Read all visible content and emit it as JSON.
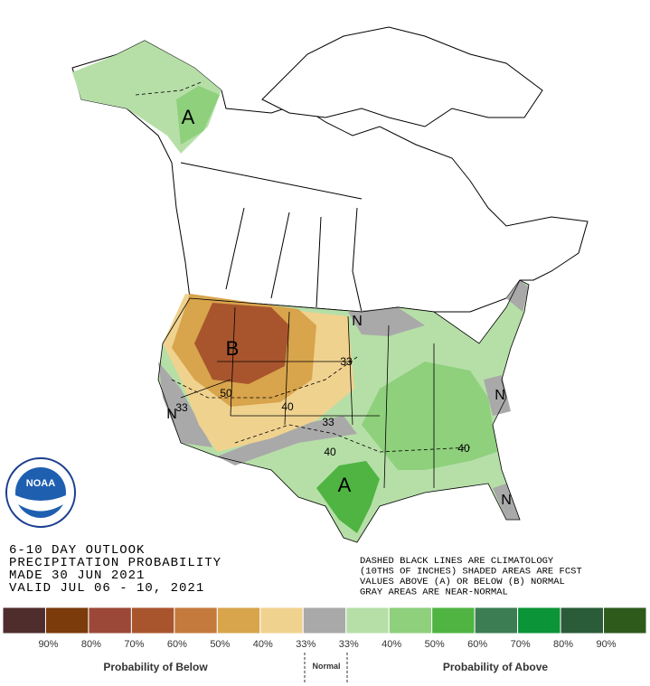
{
  "map_labels": [
    "A",
    "B",
    "A",
    "N",
    "N",
    "N",
    "N",
    "33",
    "50",
    "40",
    "33",
    "33",
    "40",
    "40"
  ],
  "logo": "NOAA",
  "outlook": [
    "6-10 DAY OUTLOOK",
    "PRECIPITATION PROBABILITY",
    "MADE  30 JUN 2021",
    "VALID  JUL 06 - 10, 2021"
  ],
  "notes": [
    "DASHED BLACK LINES ARE CLIMATOLOGY",
    "(10THS OF INCHES) SHADED AREAS ARE FCST",
    "VALUES ABOVE (A) OR BELOW (B) NORMAL",
    "GRAY AREAS ARE NEAR-NORMAL"
  ],
  "legend": {
    "colors": [
      "#4f2d2d",
      "#7b3b0b",
      "#9b4838",
      "#a8552e",
      "#c47a3c",
      "#d8a44c",
      "#f0d28f",
      "#a9a9a9",
      "#b6dfa8",
      "#8ed07c",
      "#4fb442",
      "#3c7d53",
      "#0b9438",
      "#2b5c3a",
      "#2e5a1c"
    ],
    "labels": [
      "90%",
      "80%",
      "70%",
      "60%",
      "50%",
      "40%",
      "33%",
      "33%",
      "40%",
      "50%",
      "60%",
      "70%",
      "80%",
      "90%"
    ],
    "below": "Probability of Below",
    "normal": "Normal",
    "above": "Probability of Above"
  }
}
